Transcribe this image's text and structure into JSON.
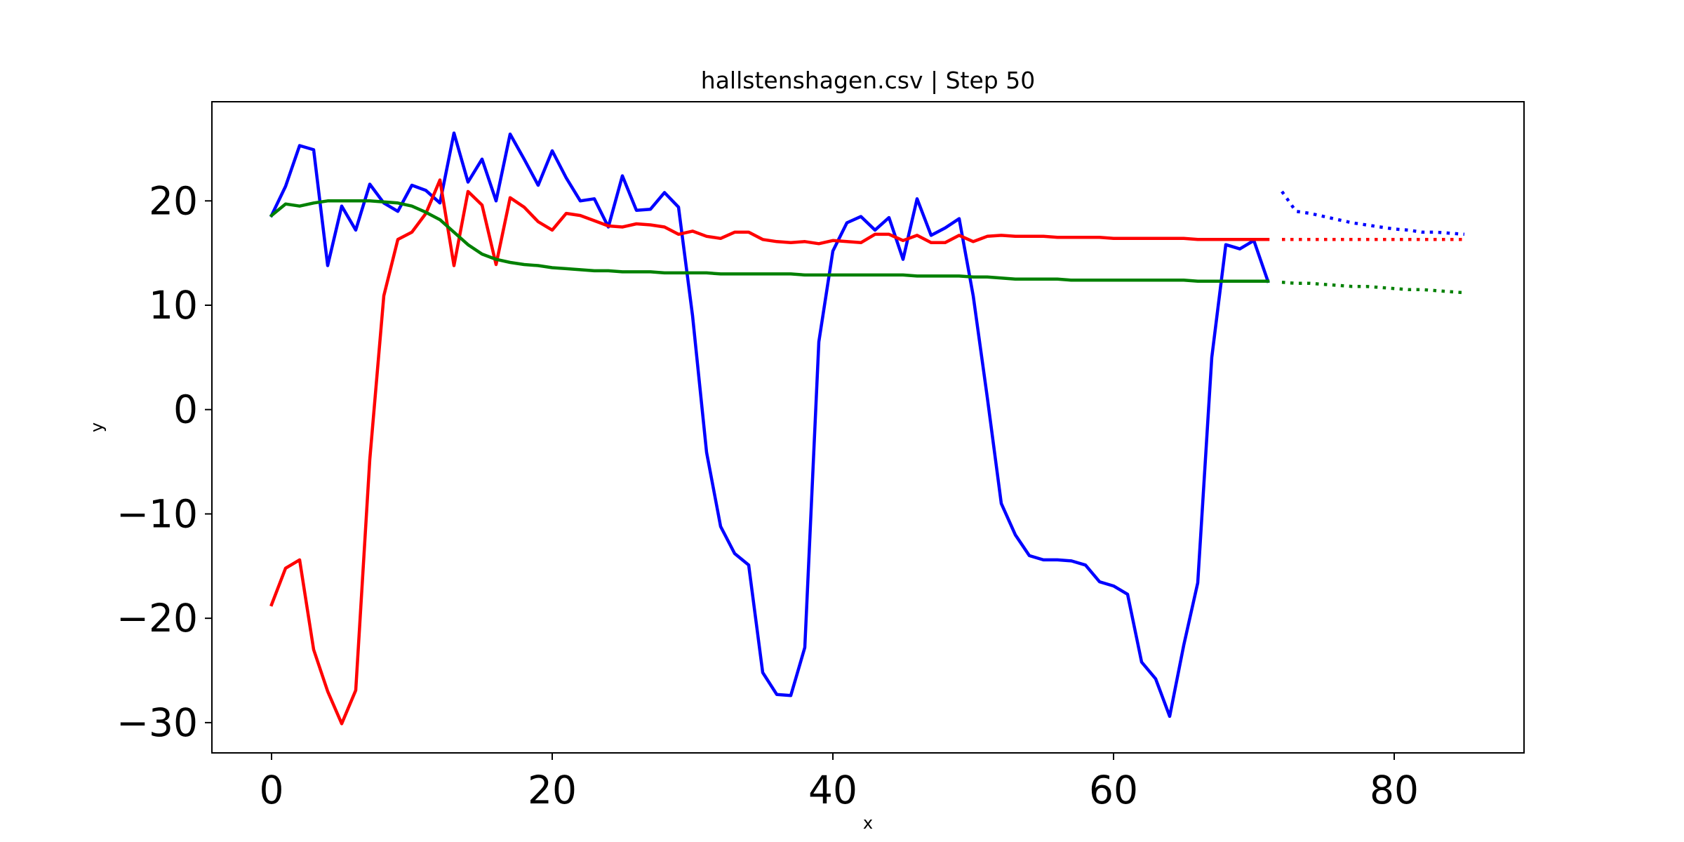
{
  "chart_data": {
    "type": "line",
    "title": "hallstenshagen.csv | Step 50",
    "xlabel": "x",
    "ylabel": "y",
    "xlim": [
      -4.25,
      89.25
    ],
    "ylim": [
      -32.9,
      29.5
    ],
    "xticks": [
      0,
      20,
      40,
      60,
      80
    ],
    "yticks": [
      -30,
      -20,
      -10,
      0,
      10,
      20
    ],
    "grid": false,
    "legend": "none",
    "series": [
      {
        "color": "#0000ff",
        "style": "solid",
        "x": [
          0,
          1,
          2,
          3,
          4,
          5,
          6,
          7,
          8,
          9,
          10,
          11,
          12,
          13,
          14,
          15,
          16,
          17,
          18,
          19,
          20,
          21,
          22,
          23,
          24,
          25,
          26,
          27,
          28,
          29,
          30,
          31,
          32,
          33,
          34,
          35,
          36,
          37,
          38,
          39,
          40,
          41,
          42,
          43,
          44,
          45,
          46,
          47,
          48,
          49,
          50,
          51,
          52,
          53,
          54,
          55,
          56,
          57,
          58,
          59,
          60,
          61,
          62,
          63,
          64,
          65,
          66,
          67,
          68,
          69,
          70,
          71
        ],
        "y": [
          18.6,
          21.4,
          25.3,
          24.9,
          13.8,
          19.5,
          17.2,
          21.6,
          19.8,
          19.0,
          21.5,
          21.0,
          19.8,
          26.5,
          21.8,
          24.0,
          20.0,
          26.4,
          24.0,
          21.5,
          24.8,
          22.2,
          20.0,
          20.2,
          17.5,
          22.4,
          19.1,
          19.2,
          20.8,
          19.4,
          9.0,
          -4.1,
          -11.2,
          -13.8,
          -14.9,
          -25.2,
          -27.3,
          -27.4,
          -22.8,
          6.5,
          15.2,
          17.9,
          18.5,
          17.2,
          18.4,
          14.4,
          20.2,
          16.7,
          17.4,
          18.3,
          10.9,
          1.2,
          -9.0,
          -12.0,
          -14.0,
          -14.4,
          -14.4,
          -14.5,
          -14.9,
          -16.5,
          -16.9,
          -17.7,
          -24.2,
          -25.8,
          -29.4,
          -22.6,
          -16.6,
          5.0,
          15.8,
          15.4,
          16.2,
          12.3
        ]
      },
      {
        "color": "#ff0000",
        "style": "solid",
        "x": [
          0,
          1,
          2,
          3,
          4,
          5,
          6,
          7,
          8,
          9,
          10,
          11,
          12,
          13,
          14,
          15,
          16,
          17,
          18,
          19,
          20,
          21,
          22,
          23,
          24,
          25,
          26,
          27,
          28,
          29,
          30,
          31,
          32,
          33,
          34,
          35,
          36,
          37,
          38,
          39,
          40,
          41,
          42,
          43,
          44,
          45,
          46,
          47,
          48,
          49,
          50,
          51,
          52,
          53,
          54,
          55,
          56,
          57,
          58,
          59,
          60,
          61,
          62,
          63,
          64,
          65,
          66,
          67,
          68,
          69,
          70,
          71
        ],
        "y": [
          -18.7,
          -15.2,
          -14.4,
          -23.0,
          -27.0,
          -30.1,
          -26.9,
          -4.8,
          10.9,
          16.3,
          17.0,
          18.8,
          22.0,
          13.8,
          20.9,
          19.6,
          13.9,
          20.3,
          19.4,
          18.0,
          17.2,
          18.8,
          18.6,
          18.1,
          17.6,
          17.5,
          17.8,
          17.7,
          17.5,
          16.8,
          17.1,
          16.6,
          16.4,
          17.0,
          17.0,
          16.3,
          16.1,
          16.0,
          16.1,
          15.9,
          16.2,
          16.1,
          16.0,
          16.8,
          16.8,
          16.2,
          16.7,
          16.0,
          16.0,
          16.7,
          16.1,
          16.6,
          16.7,
          16.6,
          16.6,
          16.6,
          16.5,
          16.5,
          16.5,
          16.5,
          16.4,
          16.4,
          16.4,
          16.4,
          16.4,
          16.4,
          16.3,
          16.3,
          16.3,
          16.3,
          16.3,
          16.3
        ]
      },
      {
        "color": "#008000",
        "style": "solid",
        "x": [
          0,
          1,
          2,
          3,
          4,
          5,
          6,
          7,
          8,
          9,
          10,
          11,
          12,
          13,
          14,
          15,
          16,
          17,
          18,
          19,
          20,
          21,
          22,
          23,
          24,
          25,
          26,
          27,
          28,
          29,
          30,
          31,
          32,
          33,
          34,
          35,
          36,
          37,
          38,
          39,
          40,
          41,
          42,
          43,
          44,
          45,
          46,
          47,
          48,
          49,
          50,
          51,
          52,
          53,
          54,
          55,
          56,
          57,
          58,
          59,
          60,
          61,
          62,
          63,
          64,
          65,
          66,
          67,
          68,
          69,
          70,
          71
        ],
        "y": [
          18.6,
          19.7,
          19.5,
          19.8,
          20.0,
          20.0,
          20.0,
          20.0,
          19.9,
          19.8,
          19.5,
          18.9,
          18.2,
          17.0,
          15.8,
          14.9,
          14.4,
          14.1,
          13.9,
          13.8,
          13.6,
          13.5,
          13.4,
          13.3,
          13.3,
          13.2,
          13.2,
          13.2,
          13.1,
          13.1,
          13.1,
          13.1,
          13.0,
          13.0,
          13.0,
          13.0,
          13.0,
          13.0,
          12.9,
          12.9,
          12.9,
          12.9,
          12.9,
          12.9,
          12.9,
          12.9,
          12.8,
          12.8,
          12.8,
          12.8,
          12.7,
          12.7,
          12.6,
          12.5,
          12.5,
          12.5,
          12.5,
          12.4,
          12.4,
          12.4,
          12.4,
          12.4,
          12.4,
          12.4,
          12.4,
          12.4,
          12.3,
          12.3,
          12.3,
          12.3,
          12.3,
          12.3
        ]
      },
      {
        "color": "#0000ff",
        "style": "dotted",
        "x": [
          72,
          73,
          74,
          75,
          76,
          77,
          78,
          79,
          80,
          81,
          82,
          83,
          84,
          85
        ],
        "y": [
          20.9,
          19.0,
          18.8,
          18.5,
          18.2,
          17.9,
          17.7,
          17.5,
          17.3,
          17.2,
          17.0,
          17.0,
          16.9,
          16.8
        ]
      },
      {
        "color": "#ff0000",
        "style": "dotted",
        "x": [
          72,
          73,
          74,
          75,
          76,
          77,
          78,
          79,
          80,
          81,
          82,
          83,
          84,
          85
        ],
        "y": [
          16.3,
          16.3,
          16.3,
          16.3,
          16.3,
          16.3,
          16.3,
          16.3,
          16.3,
          16.3,
          16.3,
          16.3,
          16.3,
          16.3
        ]
      },
      {
        "color": "#008000",
        "style": "dotted",
        "x": [
          72,
          73,
          74,
          75,
          76,
          77,
          78,
          79,
          80,
          81,
          82,
          83,
          84,
          85
        ],
        "y": [
          12.2,
          12.1,
          12.1,
          12.0,
          11.9,
          11.8,
          11.8,
          11.7,
          11.6,
          11.5,
          11.5,
          11.4,
          11.3,
          11.2
        ]
      }
    ]
  }
}
